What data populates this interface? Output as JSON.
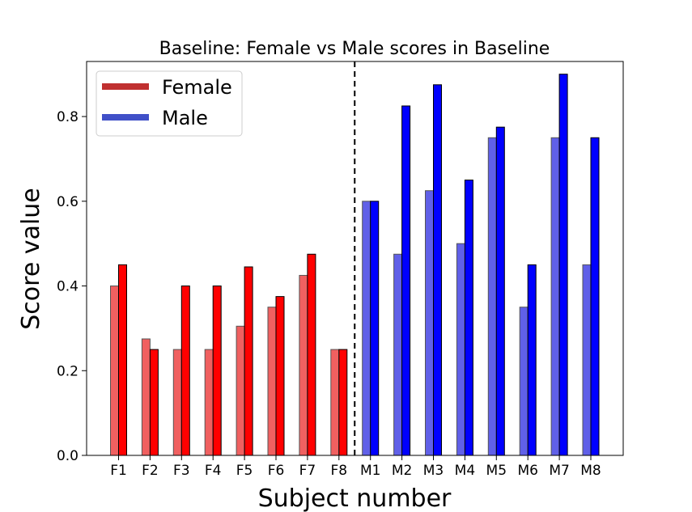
{
  "chart_data": {
    "type": "bar",
    "title": "Baseline: Female vs Male scores in Baseline",
    "xlabel": "Subject number",
    "ylabel": "Score value",
    "ylim": [
      0,
      0.93
    ],
    "yticks": [
      "0.0",
      "0.2",
      "0.4",
      "0.6",
      "0.8"
    ],
    "categories": [
      "F1",
      "F2",
      "F3",
      "F4",
      "F5",
      "F6",
      "F7",
      "F8",
      "M1",
      "M2",
      "M3",
      "M4",
      "M5",
      "M6",
      "M7",
      "M8"
    ],
    "series": [
      {
        "values": [
          0.4,
          0.275,
          0.25,
          0.25,
          0.305,
          0.35,
          0.425,
          0.25,
          0.6,
          0.475,
          0.625,
          0.5,
          0.75,
          0.35,
          0.75,
          0.45
        ]
      },
      {
        "values": [
          0.45,
          0.25,
          0.4,
          0.4,
          0.445,
          0.375,
          0.475,
          0.25,
          0.6,
          0.825,
          0.875,
          0.65,
          0.775,
          0.45,
          0.9,
          0.75
        ]
      }
    ],
    "groups": [
      {
        "name": "Female",
        "light_color": "#f06060",
        "dark_color": "#ff0000",
        "legend_color": "#c03030"
      },
      {
        "name": "Male",
        "light_color": "#6060e8",
        "dark_color": "#0000ff",
        "legend_color": "#4050c8"
      }
    ],
    "divider_after_category": "F8",
    "grid": false,
    "legend_position": "top-left"
  }
}
